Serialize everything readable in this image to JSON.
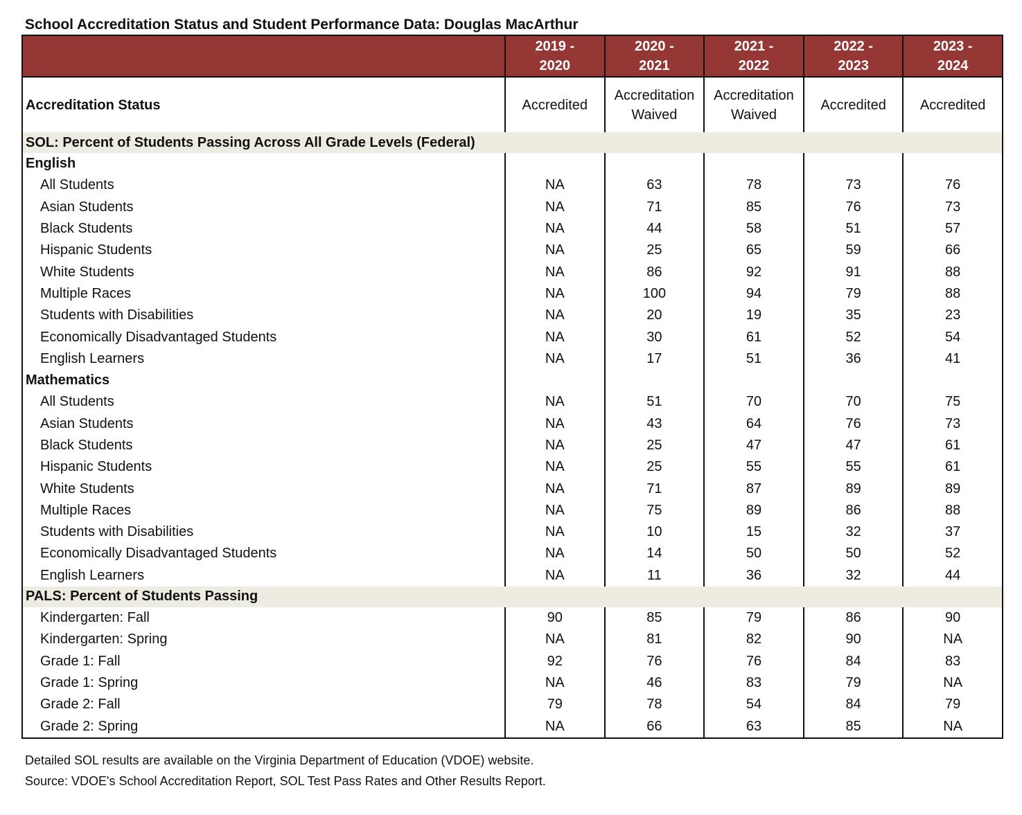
{
  "title": "School Accreditation Status and Student Performance Data: Douglas MacArthur",
  "colors": {
    "header_bg": "#953735",
    "band_bg": "#eeece1"
  },
  "years": [
    [
      "2019 -",
      "2020"
    ],
    [
      "2020 -",
      "2021"
    ],
    [
      "2021 -",
      "2022"
    ],
    [
      "2022 -",
      "2023"
    ],
    [
      "2023 -",
      "2024"
    ]
  ],
  "accreditation": {
    "label": "Accreditation Status",
    "values": [
      [
        "Accredited"
      ],
      [
        "Accreditation",
        "Waived"
      ],
      [
        "Accreditation",
        "Waived"
      ],
      [
        "Accredited"
      ],
      [
        "Accredited"
      ]
    ]
  },
  "sections": [
    {
      "title": "SOL: Percent of Students Passing Across All Grade Levels (Federal)",
      "groups": [
        {
          "name": "English",
          "rows": [
            {
              "label": "All Students",
              "values": [
                "NA",
                "63",
                "78",
                "73",
                "76"
              ]
            },
            {
              "label": "Asian Students",
              "values": [
                "NA",
                "71",
                "85",
                "76",
                "73"
              ]
            },
            {
              "label": "Black Students",
              "values": [
                "NA",
                "44",
                "58",
                "51",
                "57"
              ]
            },
            {
              "label": "Hispanic Students",
              "values": [
                "NA",
                "25",
                "65",
                "59",
                "66"
              ]
            },
            {
              "label": "White Students",
              "values": [
                "NA",
                "86",
                "92",
                "91",
                "88"
              ]
            },
            {
              "label": "Multiple Races",
              "values": [
                "NA",
                "100",
                "94",
                "79",
                "88"
              ]
            },
            {
              "label": "Students with Disabilities",
              "values": [
                "NA",
                "20",
                "19",
                "35",
                "23"
              ]
            },
            {
              "label": "Economically Disadvantaged Students",
              "values": [
                "NA",
                "30",
                "61",
                "52",
                "54"
              ]
            },
            {
              "label": "English Learners",
              "values": [
                "NA",
                "17",
                "51",
                "36",
                "41"
              ]
            }
          ]
        },
        {
          "name": "Mathematics",
          "rows": [
            {
              "label": "All Students",
              "values": [
                "NA",
                "51",
                "70",
                "70",
                "75"
              ]
            },
            {
              "label": "Asian Students",
              "values": [
                "NA",
                "43",
                "64",
                "76",
                "73"
              ]
            },
            {
              "label": "Black Students",
              "values": [
                "NA",
                "25",
                "47",
                "47",
                "61"
              ]
            },
            {
              "label": "Hispanic Students",
              "values": [
                "NA",
                "25",
                "55",
                "55",
                "61"
              ]
            },
            {
              "label": "White Students",
              "values": [
                "NA",
                "71",
                "87",
                "89",
                "89"
              ]
            },
            {
              "label": "Multiple Races",
              "values": [
                "NA",
                "75",
                "89",
                "86",
                "88"
              ]
            },
            {
              "label": "Students with Disabilities",
              "values": [
                "NA",
                "10",
                "15",
                "32",
                "37"
              ]
            },
            {
              "label": "Economically Disadvantaged Students",
              "values": [
                "NA",
                "14",
                "50",
                "50",
                "52"
              ]
            },
            {
              "label": "English Learners",
              "values": [
                "NA",
                "11",
                "36",
                "32",
                "44"
              ]
            }
          ]
        }
      ]
    },
    {
      "title": "PALS: Percent of Students Passing",
      "groups": [
        {
          "name": "",
          "rows": [
            {
              "label": "Kindergarten: Fall",
              "values": [
                "90",
                "85",
                "79",
                "86",
                "90"
              ]
            },
            {
              "label": "Kindergarten: Spring",
              "values": [
                "NA",
                "81",
                "82",
                "90",
                "NA"
              ]
            },
            {
              "label": "Grade 1: Fall",
              "values": [
                "92",
                "76",
                "76",
                "84",
                "83"
              ]
            },
            {
              "label": "Grade 1: Spring",
              "values": [
                "NA",
                "46",
                "83",
                "79",
                "NA"
              ]
            },
            {
              "label": "Grade 2: Fall",
              "values": [
                "79",
                "78",
                "54",
                "84",
                "79"
              ]
            },
            {
              "label": "Grade 2: Spring",
              "values": [
                "NA",
                "66",
                "63",
                "85",
                "NA"
              ]
            }
          ]
        }
      ]
    }
  ],
  "notes": [
    "Detailed SOL results are available on the Virginia Department of Education (VDOE) website.",
    "Source: VDOE's School Accreditation Report, SOL Test Pass Rates and Other Results Report."
  ]
}
